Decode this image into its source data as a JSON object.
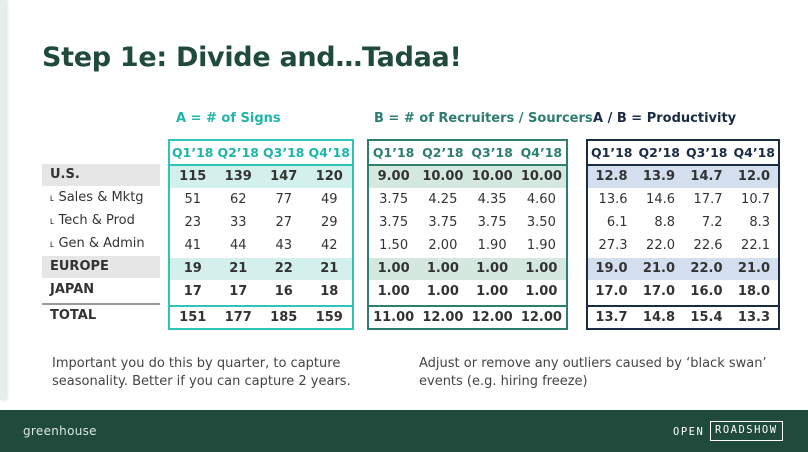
{
  "title": "Step 1e: Divide and…Tadaa!",
  "groups": {
    "a": "A = # of Signs",
    "b": "B = # of Recruiters / Sourcers",
    "c": "A / B = Productivity"
  },
  "quarters": [
    "Q1’18",
    "Q2’18",
    "Q3’18",
    "Q4’18"
  ],
  "rows": [
    {
      "label": "U.S.",
      "a": [
        "115",
        "139",
        "147",
        "120"
      ],
      "b": [
        "9.00",
        "10.00",
        "10.00",
        "10.00"
      ],
      "c": [
        "12.8",
        "13.9",
        "14.7",
        "12.0"
      ]
    },
    {
      "label": "˪ Sales & Mktg",
      "a": [
        "51",
        "62",
        "77",
        "49"
      ],
      "b": [
        "3.75",
        "4.25",
        "4.35",
        "4.60"
      ],
      "c": [
        "13.6",
        "14.6",
        "17.7",
        "10.7"
      ]
    },
    {
      "label": "˪ Tech & Prod",
      "a": [
        "23",
        "33",
        "27",
        "29"
      ],
      "b": [
        "3.75",
        "3.75",
        "3.75",
        "3.50"
      ],
      "c": [
        "6.1",
        "8.8",
        "7.2",
        "8.3"
      ]
    },
    {
      "label": "˪ Gen & Admin",
      "a": [
        "41",
        "44",
        "43",
        "42"
      ],
      "b": [
        "1.50",
        "2.00",
        "1.90",
        "1.90"
      ],
      "c": [
        "27.3",
        "22.0",
        "22.6",
        "22.1"
      ]
    },
    {
      "label": "EUROPE",
      "a": [
        "19",
        "21",
        "22",
        "21"
      ],
      "b": [
        "1.00",
        "1.00",
        "1.00",
        "1.00"
      ],
      "c": [
        "19.0",
        "21.0",
        "22.0",
        "21.0"
      ]
    },
    {
      "label": "JAPAN",
      "a": [
        "17",
        "17",
        "16",
        "18"
      ],
      "b": [
        "1.00",
        "1.00",
        "1.00",
        "1.00"
      ],
      "c": [
        "17.0",
        "17.0",
        "16.0",
        "18.0"
      ]
    },
    {
      "label": "TOTAL",
      "a": [
        "151",
        "177",
        "185",
        "159"
      ],
      "b": [
        "11.00",
        "12.00",
        "12.00",
        "12.00"
      ],
      "c": [
        "13.7",
        "14.8",
        "15.4",
        "13.3"
      ]
    }
  ],
  "notes": {
    "left": "Important you do this by quarter, to capture seasonality. Better if you can capture 2 years.",
    "right": "Adjust or remove any outliers caused by ‘black swan’ events (e.g. hiring freeze)"
  },
  "footer": {
    "logo": "greenhouse",
    "open": "OPEN",
    "roadshow": "ROADSHOW"
  },
  "colors": {
    "title": "#1f4a3c",
    "group_a": "#1fb5a8",
    "group_b": "#2d7e70",
    "group_c": "#1a2b44",
    "footer_bg": "#1f4a3c"
  }
}
